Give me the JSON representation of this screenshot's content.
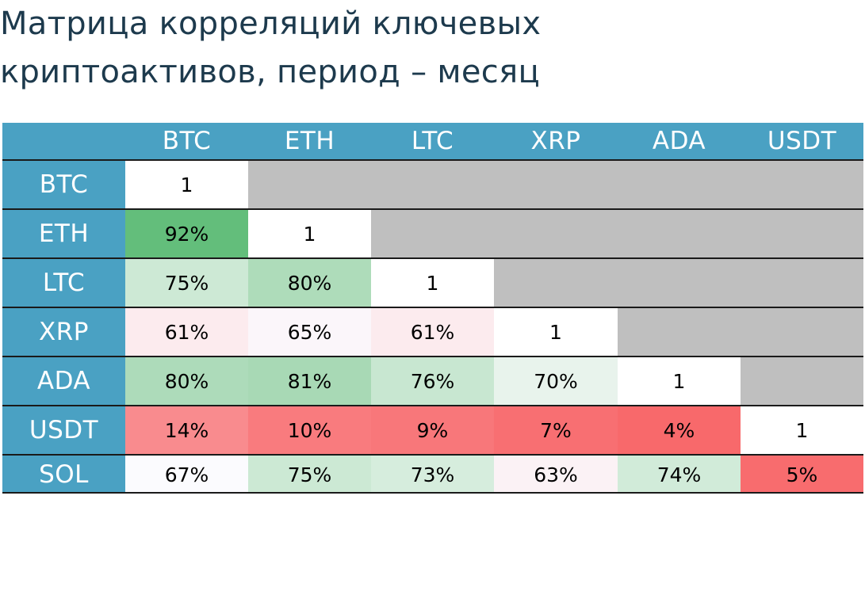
{
  "title_lines": [
    "Матрица корреляций ключевых",
    "криптоактивов, период – месяц"
  ],
  "chart_data": {
    "type": "heatmap",
    "title": "Матрица корреляций ключевых криптоактивов, период – месяц",
    "columns": [
      "BTC",
      "ETH",
      "LTC",
      "XRP",
      "ADA",
      "USDT"
    ],
    "rows": [
      "BTC",
      "ETH",
      "LTC",
      "XRP",
      "ADA",
      "USDT",
      "SOL"
    ],
    "values": [
      [
        1,
        null,
        null,
        null,
        null,
        null
      ],
      [
        0.92,
        1,
        null,
        null,
        null,
        null
      ],
      [
        0.75,
        0.8,
        1,
        null,
        null,
        null
      ],
      [
        0.61,
        0.65,
        0.61,
        1,
        null,
        null
      ],
      [
        0.8,
        0.81,
        0.76,
        0.7,
        1,
        null
      ],
      [
        0.14,
        0.1,
        0.09,
        0.07,
        0.04,
        1
      ],
      [
        0.67,
        0.75,
        0.73,
        0.63,
        0.74,
        0.05
      ]
    ],
    "labels": [
      [
        "1",
        "",
        "",
        "",
        "",
        ""
      ],
      [
        "92%",
        "1",
        "",
        "",
        "",
        ""
      ],
      [
        "75%",
        "80%",
        "1",
        "",
        "",
        ""
      ],
      [
        "61%",
        "65%",
        "61%",
        "1",
        "",
        ""
      ],
      [
        "80%",
        "81%",
        "76%",
        "70%",
        "1",
        ""
      ],
      [
        "14%",
        "10%",
        "9%",
        "7%",
        "4%",
        "1"
      ],
      [
        "67%",
        "75%",
        "73%",
        "63%",
        "74%",
        "5%"
      ]
    ],
    "colors": {
      "header": "#4aa1c3",
      "diagonal": "#ffffff",
      "empty": "#bfbfbf",
      "cells": [
        [
          null,
          null,
          null,
          null,
          null,
          null
        ],
        [
          "#63be7b",
          null,
          null,
          null,
          null,
          null
        ],
        [
          "#cde9d5",
          "#aedcba",
          null,
          null,
          null,
          null
        ],
        [
          "#fcebee",
          "#fbf6fa",
          "#fcebee",
          null,
          null,
          null
        ],
        [
          "#addbba",
          "#a8d9b5",
          "#c8e7d1",
          "#e8f3ec",
          null,
          null
        ],
        [
          "#f98b8e",
          "#f97b7e",
          "#f8777a",
          "#f86f72",
          "#f8696b",
          null
        ],
        [
          "#fbfbfe",
          "#cce9d4",
          "#d6eddd",
          "#fbf2f5",
          "#d1ebd9",
          "#f86c6e"
        ]
      ]
    }
  }
}
